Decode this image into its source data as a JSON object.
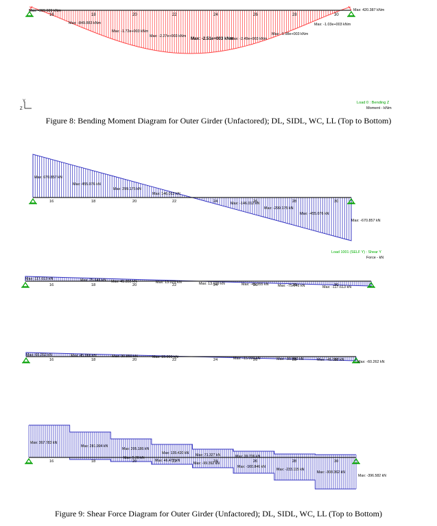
{
  "figure8": {
    "caption": "Figure 8: Bending Moment Diagram for Outer Girder (Unfactored); DL, SIDL, WC, LL (Top to Bottom)",
    "load_label": "Load 0 : Bending Z",
    "units_label": "Moment - kNm",
    "axis_y": "Y",
    "axis_z": "Z",
    "colors": {
      "diagram": "#ff4040",
      "load_label": "#00a000",
      "units_label": "#000000"
    },
    "node_labels": [
      "16",
      "18",
      "20",
      "22",
      "24",
      "26",
      "28",
      "30"
    ],
    "max_labels": [
      "Max: -399.609 kNm",
      "Max: -849.883 kNm",
      "Max: -1.72e+003 kNm",
      "Max: -2.27e+003 kNm",
      "Max: -2.51e+003 kNm",
      "Max: -2.49e+003 kNm",
      "Max: -1.98e+003 kNm",
      "Max: -1.03e+003 kNm",
      "Max: 420.387 kNm"
    ]
  },
  "figure9": {
    "caption": "Figure 9: Shear Force Diagram for Outer Girder (Unfactored); DL, SIDL, WC, LL (Top to Bottom)",
    "load_label": "Load 1001 (SELF Y) : Shear Y",
    "units_label": "Force - kN",
    "colors": {
      "diagram": "#3030c0",
      "load_label": "#00b000",
      "units_label": "#000000"
    },
    "panels": [
      {
        "node_labels": [
          "16",
          "18",
          "20",
          "22",
          "24",
          "26",
          "28",
          "30"
        ],
        "max_labels": [
          "Max: 670.857 kN",
          "Max: 455.076 kN",
          "Max: 299.175 kN",
          "Max: 146.012 kN",
          "Max: -146.012 kN",
          "Max: -299.175 kN",
          "Max: -455.076 kN",
          "Max: -670.857 kN"
        ]
      },
      {
        "node_labels": [
          "16",
          "18",
          "20",
          "22",
          "24",
          "26",
          "28",
          "30"
        ],
        "max_labels": [
          "Max: 117.613 kN",
          "Max: 75.646 kN",
          "Max: 41.355 kN",
          "Max: 13.029 kN",
          "Max: 13.029 kN",
          "Max: -41.355 kN",
          "Max: -75.646 kN",
          "Max: -117.613 kN"
        ]
      },
      {
        "node_labels": [
          "16",
          "18",
          "20",
          "22",
          "24",
          "26",
          "28",
          "30"
        ],
        "max_labels": [
          "Max: 60.262 kN",
          "Max: 45.066 kN",
          "Max: 30.850 kN",
          "Max: 15.099 kN",
          "Max: -15.099 kN",
          "Max: -30.850 kN",
          "Max: -45.067 kN",
          "Max: -60.262 kN"
        ]
      },
      {
        "node_labels": [
          "16",
          "18",
          "20",
          "22",
          "24",
          "26",
          "28",
          "30"
        ],
        "max_labels": [
          "Max: 367.783 kN",
          "Max: 281.994 kN",
          "Max: 205.186 kN",
          "Max: 5.20 kN",
          "Max: 135.420 kN",
          "Max: 46.477 kN",
          "Max: 71.327 kN",
          "Max: -99.392 kN",
          "Max: 39.706 kN",
          "Max: -160.846 kN",
          "Max: -233.115 kN",
          "Max: -308.362 kN",
          "Max: -396.582 kN"
        ]
      }
    ]
  }
}
